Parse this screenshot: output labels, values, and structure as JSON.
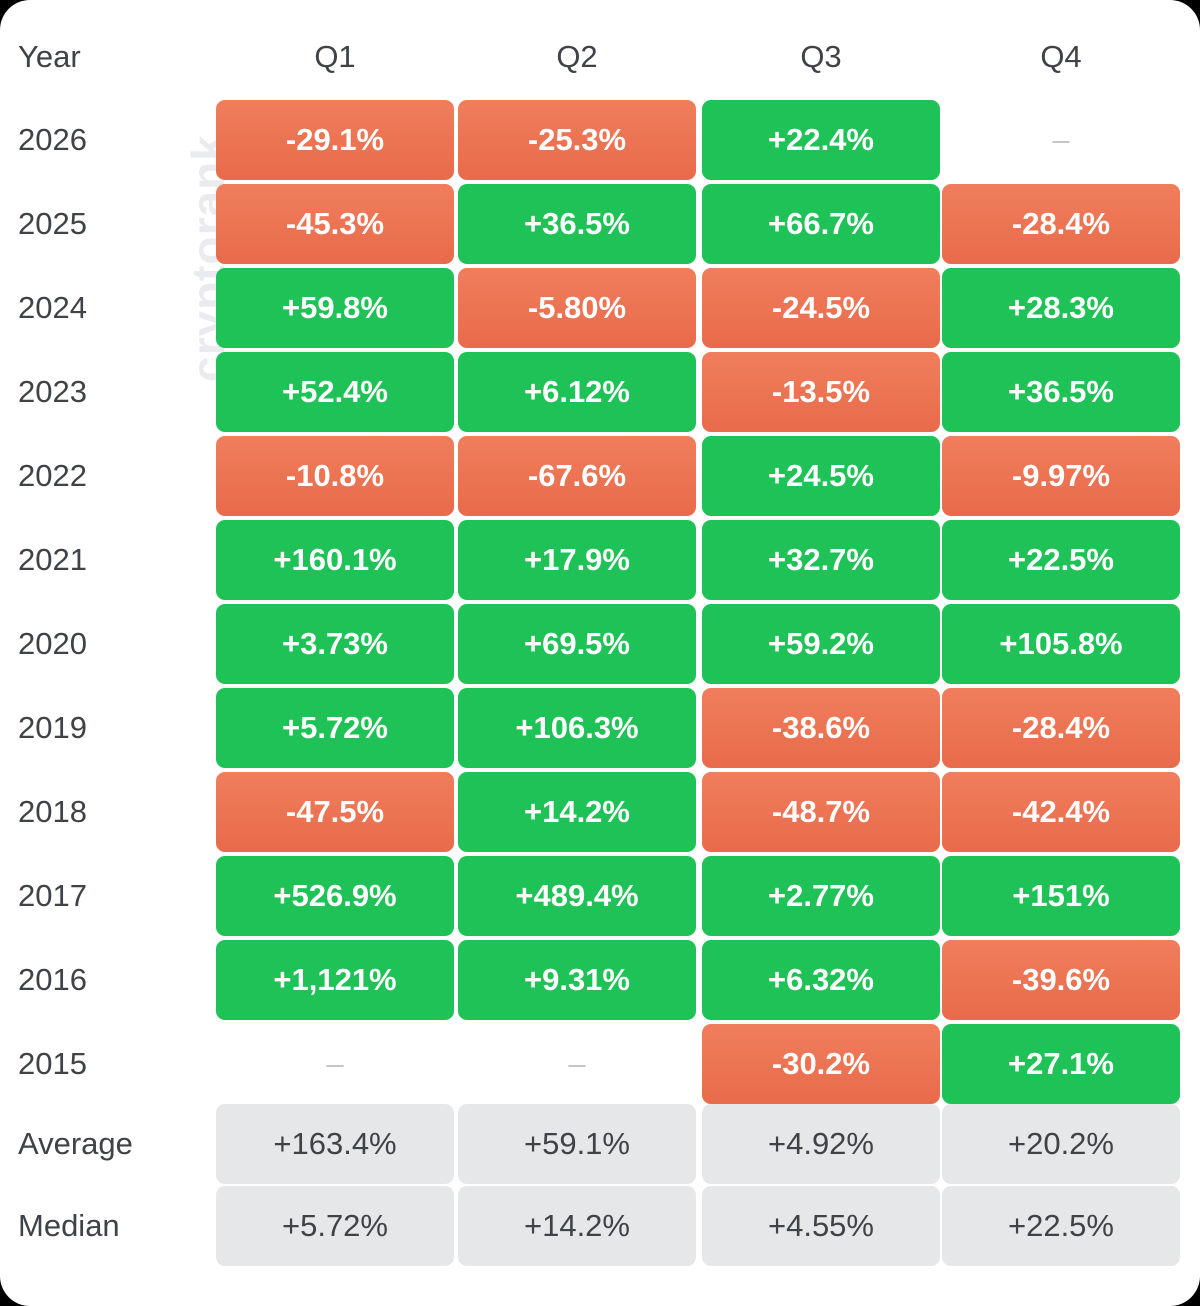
{
  "watermark": "cryptorank",
  "chart_data": {
    "type": "table",
    "columns": [
      "Year",
      "Q1",
      "Q2",
      "Q3",
      "Q4"
    ],
    "rows": [
      {
        "label": "2026",
        "values": [
          "-29.1%",
          "-25.3%",
          "+22.4%",
          "–"
        ]
      },
      {
        "label": "2025",
        "values": [
          "-45.3%",
          "+36.5%",
          "+66.7%",
          "-28.4%"
        ]
      },
      {
        "label": "2024",
        "values": [
          "+59.8%",
          "-5.80%",
          "-24.5%",
          "+28.3%"
        ]
      },
      {
        "label": "2023",
        "values": [
          "+52.4%",
          "+6.12%",
          "-13.5%",
          "+36.5%"
        ]
      },
      {
        "label": "2022",
        "values": [
          "-10.8%",
          "-67.6%",
          "+24.5%",
          "-9.97%"
        ]
      },
      {
        "label": "2021",
        "values": [
          "+160.1%",
          "+17.9%",
          "+32.7%",
          "+22.5%"
        ]
      },
      {
        "label": "2020",
        "values": [
          "+3.73%",
          "+69.5%",
          "+59.2%",
          "+105.8%"
        ]
      },
      {
        "label": "2019",
        "values": [
          "+5.72%",
          "+106.3%",
          "-38.6%",
          "-28.4%"
        ]
      },
      {
        "label": "2018",
        "values": [
          "-47.5%",
          "+14.2%",
          "-48.7%",
          "-42.4%"
        ]
      },
      {
        "label": "2017",
        "values": [
          "+526.9%",
          "+489.4%",
          "+2.77%",
          "+151%"
        ]
      },
      {
        "label": "2016",
        "values": [
          "+1,121%",
          "+9.31%",
          "+6.32%",
          "-39.6%"
        ]
      },
      {
        "label": "2015",
        "values": [
          "–",
          "–",
          "-30.2%",
          "+27.1%"
        ]
      }
    ],
    "summary": [
      {
        "label": "Average",
        "values": [
          "+163.4%",
          "+59.1%",
          "+4.92%",
          "+20.2%"
        ]
      },
      {
        "label": "Median",
        "values": [
          "+5.72%",
          "+14.2%",
          "+4.55%",
          "+22.5%"
        ]
      }
    ]
  },
  "colors": {
    "positive": "#1fc257",
    "negative": "#ec7352",
    "summary": "#e6e7e9",
    "text": "#3f4246"
  }
}
